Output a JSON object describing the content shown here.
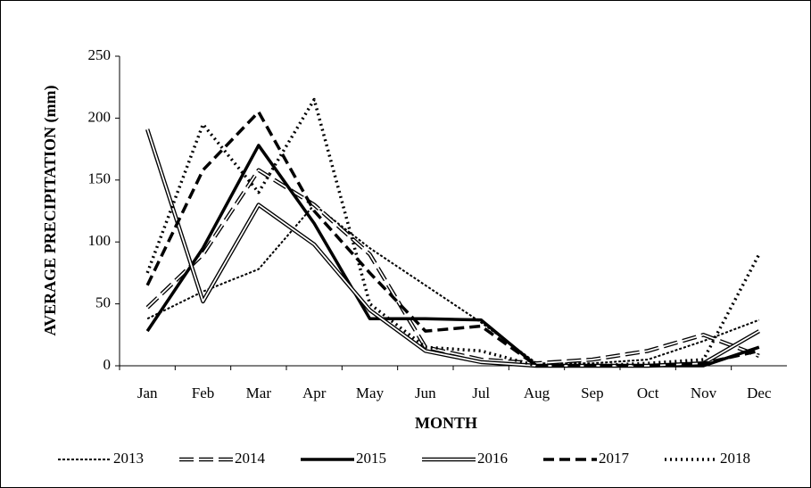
{
  "chart_data": {
    "type": "line",
    "x_label": "MONTH",
    "y_label": "AVERAGE  PRECIPITATION  (mm)",
    "categories": [
      "Jan",
      "Feb",
      "Mar",
      "Apr",
      "May",
      "Jun",
      "Jul",
      "Aug",
      "Sep",
      "Oct",
      "Nov",
      "Dec"
    ],
    "ylim": [
      0,
      250
    ],
    "yticks": [
      0,
      50,
      100,
      150,
      200,
      250
    ],
    "legend": "bottom",
    "series": [
      {
        "name": "2013",
        "color": "#000000",
        "style": "fine-dashed",
        "values": [
          38,
          60,
          78,
          130,
          95,
          65,
          35,
          2,
          2,
          5,
          20,
          37
        ]
      },
      {
        "name": "2014",
        "color": "#000000",
        "style": "long-dashed-double",
        "values": [
          47,
          90,
          158,
          130,
          90,
          15,
          5,
          2,
          5,
          12,
          25,
          8
        ]
      },
      {
        "name": "2015",
        "color": "#000000",
        "style": "solid",
        "values": [
          28,
          95,
          178,
          115,
          38,
          38,
          37,
          0,
          0,
          0,
          0,
          15
        ]
      },
      {
        "name": "2016",
        "color": "#000000",
        "style": "double",
        "values": [
          191,
          52,
          130,
          98,
          45,
          12,
          3,
          0,
          0,
          0,
          2,
          28
        ]
      },
      {
        "name": "2017",
        "color": "#000000",
        "style": "dashed",
        "values": [
          65,
          158,
          205,
          125,
          75,
          28,
          32,
          0,
          0,
          0,
          2,
          12
        ]
      },
      {
        "name": "2018",
        "color": "#000000",
        "style": "dotted",
        "values": [
          75,
          195,
          140,
          215,
          50,
          15,
          12,
          0,
          0,
          2,
          5,
          90
        ]
      }
    ]
  }
}
